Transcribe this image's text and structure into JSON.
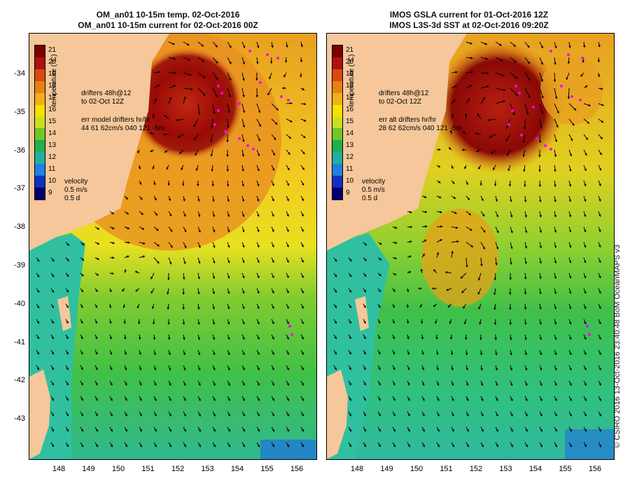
{
  "left": {
    "title_line1": "OM_an01 10-15m temp. 02-Oct-2016",
    "title_line2": "OM_an01 10-15m current for 02-Oct-2016 00Z",
    "drifters_line1": "drifters 48h@12",
    "drifters_line2": "to 02-Oct 12Z",
    "err_line1": "err model drifters hr/hr",
    "err_line2": "44 61 62cm/s 040 121 -5m",
    "velocity_label": "velocity",
    "velocity_scale": "0.5 m/s",
    "velocity_time": "0.5 d",
    "colorbar_title": "temperature (°C)"
  },
  "right": {
    "title_line1": "IMOS GSLA current for 01-Oct-2016 12Z",
    "title_line2": "IMOS L3S-3d SST at 02-Oct-2016 09:20Z",
    "drifters_line1": "drifters 48h@12",
    "drifters_line2": "to 02-Oct 12Z",
    "err_line1": "err alt drifters hr/hr",
    "err_line2": "28 62 62cm/s 040 121 -5m",
    "velocity_label": "velocity",
    "velocity_scale": "0.5 m/s",
    "velocity_time": "0.5 d",
    "colorbar_title": "temperature (°C)"
  },
  "colorbar": {
    "ticks": [
      "21",
      "20",
      "19",
      "18",
      "17",
      "16",
      "15",
      "14",
      "13",
      "12",
      "11",
      "10",
      "9"
    ],
    "colors": [
      "#7a0000",
      "#b01010",
      "#d84810",
      "#e88010",
      "#f0b018",
      "#f8e000",
      "#c8e020",
      "#70c828",
      "#20b050",
      "#20b0a0",
      "#2080e0",
      "#1030c0",
      "#000070"
    ]
  },
  "map": {
    "y_ticks": [
      "-34",
      "-35",
      "-36",
      "-37",
      "-38",
      "-39",
      "-40",
      "-41",
      "-42",
      "-43"
    ],
    "x_ticks": [
      "148",
      "149",
      "150",
      "151",
      "152",
      "153",
      "154",
      "155",
      "156"
    ],
    "land_color": "#f5c79a",
    "drifter_color": "#ff00ff"
  },
  "credit": "© CSIRO 2016  13-Oct-2016 23:40:48 BoM OceanMAPS v3"
}
